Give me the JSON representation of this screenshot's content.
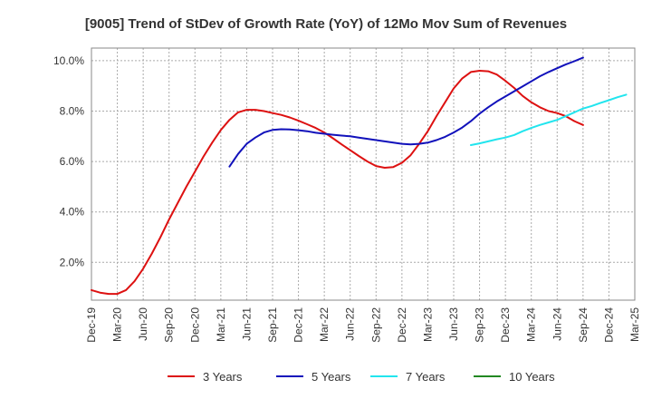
{
  "chart_data": {
    "type": "line",
    "title": "[9005]  Trend of StDev of Growth Rate (YoY) of 12Mo Mov Sum of Revenues",
    "xlabel": "",
    "ylabel": "",
    "x_ticks": [
      "Dec-19",
      "Mar-20",
      "Jun-20",
      "Sep-20",
      "Dec-20",
      "Mar-21",
      "Jun-21",
      "Sep-21",
      "Dec-21",
      "Mar-22",
      "Jun-22",
      "Sep-22",
      "Dec-22",
      "Mar-23",
      "Jun-23",
      "Sep-23",
      "Dec-23",
      "Mar-24",
      "Jun-24",
      "Sep-24",
      "Dec-24",
      "Mar-25"
    ],
    "y_ticks": [
      2.0,
      4.0,
      6.0,
      8.0,
      10.0
    ],
    "y_tick_labels": [
      "2.0%",
      "4.0%",
      "6.0%",
      "8.0%",
      "10.0%"
    ],
    "ylim": [
      0.5,
      10.5
    ],
    "grid": true,
    "legend_position": "bottom",
    "series": [
      {
        "name": "3 Years",
        "color": "#dd1111",
        "start_index": 0,
        "values": [
          0.9,
          0.8,
          0.75,
          0.75,
          0.9,
          1.25,
          1.75,
          2.35,
          3.0,
          3.7,
          4.35,
          5.0,
          5.6,
          6.2,
          6.75,
          7.25,
          7.65,
          7.95,
          8.05,
          8.05,
          8.0,
          7.92,
          7.85,
          7.75,
          7.62,
          7.48,
          7.33,
          7.15,
          6.92,
          6.68,
          6.45,
          6.22,
          6.0,
          5.82,
          5.75,
          5.78,
          5.95,
          6.25,
          6.7,
          7.2,
          7.8,
          8.35,
          8.9,
          9.3,
          9.55,
          9.6,
          9.58,
          9.45,
          9.2,
          8.92,
          8.6,
          8.35,
          8.15,
          8.0,
          7.92,
          7.8,
          7.6,
          7.45
        ]
      },
      {
        "name": "5 Years",
        "color": "#1111bb",
        "start_index": 16,
        "values": [
          5.8,
          6.3,
          6.7,
          6.95,
          7.15,
          7.25,
          7.28,
          7.27,
          7.24,
          7.2,
          7.14,
          7.1,
          7.06,
          7.03,
          7.0,
          6.95,
          6.9,
          6.85,
          6.8,
          6.75,
          6.7,
          6.68,
          6.7,
          6.75,
          6.85,
          6.98,
          7.15,
          7.35,
          7.6,
          7.9,
          8.15,
          8.38,
          8.58,
          8.78,
          8.98,
          9.18,
          9.38,
          9.55,
          9.7,
          9.85,
          9.98,
          10.12
        ]
      },
      {
        "name": "7 Years",
        "color": "#22e5ee",
        "start_index": 44,
        "values": [
          6.65,
          6.72,
          6.8,
          6.88,
          6.95,
          7.05,
          7.2,
          7.33,
          7.45,
          7.55,
          7.65,
          7.8,
          7.95,
          8.1,
          8.2,
          8.32,
          8.43,
          8.55,
          8.65
        ]
      },
      {
        "name": "10 Years",
        "color": "#228822",
        "start_index": 0,
        "values": []
      }
    ]
  }
}
